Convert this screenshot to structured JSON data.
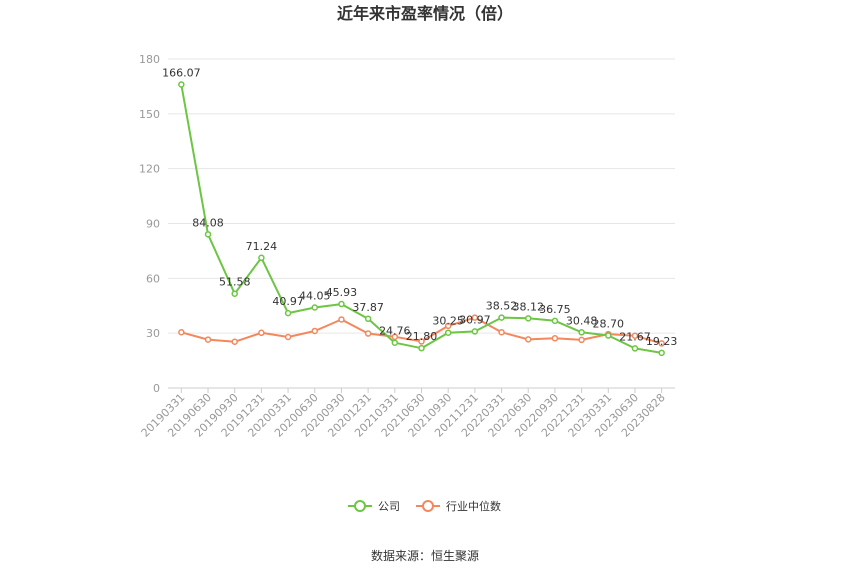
{
  "chart_data": {
    "type": "line",
    "title": "近年来市盈率情况（倍）",
    "xlabel": "",
    "ylabel": "",
    "ylim": [
      0,
      180
    ],
    "yticks": [
      0,
      30,
      60,
      90,
      120,
      150,
      180
    ],
    "grid": true,
    "legend_position": "bottom",
    "categories": [
      "20190331",
      "20190630",
      "20190930",
      "20191231",
      "20200331",
      "20200630",
      "20200930",
      "20201231",
      "20210331",
      "20210630",
      "20210930",
      "20211231",
      "20220331",
      "20220630",
      "20220930",
      "20221231",
      "20230331",
      "20230630",
      "20230828"
    ],
    "series": [
      {
        "name": "公司",
        "color": "#6cc644",
        "values": [
          166.07,
          84.08,
          51.58,
          71.24,
          40.97,
          44.05,
          45.93,
          37.87,
          24.76,
          21.8,
          30.25,
          30.97,
          38.52,
          38.12,
          36.75,
          30.48,
          28.7,
          21.67,
          19.23
        ],
        "labels": [
          "166.07",
          "84.08",
          "51.58",
          "71.24",
          "40.97",
          "44.05",
          "45.93",
          "37.87",
          "24.76",
          "21.80",
          "30.25",
          "30.97",
          "38.52",
          "38.12",
          "36.75",
          "30.48",
          "28.70",
          "21.67",
          "19.23"
        ]
      },
      {
        "name": "行业中位数",
        "color": "#f4875c",
        "values": [
          30.5,
          26.5,
          25.3,
          30.2,
          27.9,
          31.2,
          37.5,
          29.8,
          28.0,
          25.5,
          34.0,
          38.5,
          30.5,
          26.6,
          27.2,
          26.3,
          29.5,
          28.6,
          24.4
        ]
      }
    ]
  },
  "footer": {
    "source": "数据来源：恒生聚源"
  }
}
